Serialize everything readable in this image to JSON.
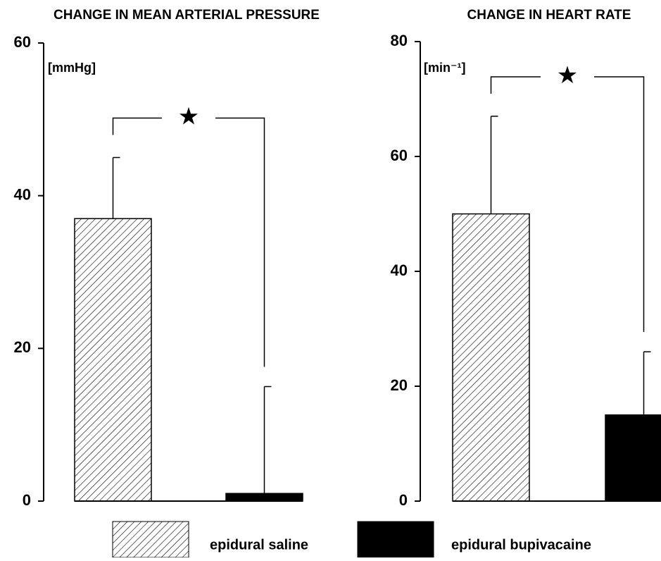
{
  "chart_data": [
    {
      "type": "bar",
      "title": "CHANGE IN MEAN ARTERIAL PRESSURE",
      "y_label": "[mmHg]",
      "values": [
        37,
        1
      ],
      "errors": [
        8,
        14
      ],
      "ylim": [
        0,
        60
      ],
      "yticks": [
        0,
        20,
        40,
        60
      ],
      "annotation": "★"
    },
    {
      "type": "bar",
      "title": "CHANGE IN HEART RATE",
      "y_label": "[min⁻¹]",
      "values": [
        50,
        15
      ],
      "errors": [
        17,
        11
      ],
      "ylim": [
        0,
        80
      ],
      "yticks": [
        0,
        20,
        40,
        60,
        80
      ],
      "annotation": "★"
    }
  ],
  "legend": {
    "entries": [
      {
        "name": "epidural saline",
        "fill": "hatch"
      },
      {
        "name": "epidural bupivacaine",
        "fill": "#000000"
      }
    ]
  }
}
